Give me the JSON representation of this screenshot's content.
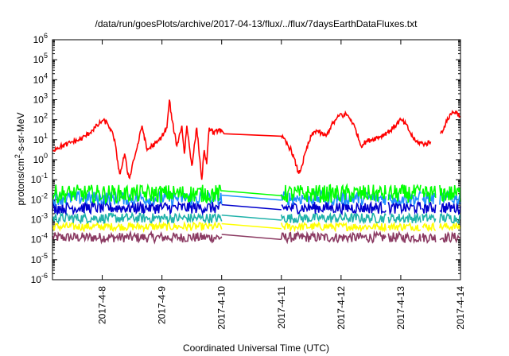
{
  "chart_data": {
    "type": "line",
    "title": "/data/run/goesPlots/archive/2017-04-13/flux/../flux/7daysEarthDataFluxes.txt",
    "xlabel": "Coordinated Universal Time (UTC)",
    "ylabel_parts": {
      "base": "protons/cm",
      "sup": "2",
      "rest": "-s-sr-MeV"
    },
    "y_scale": "log",
    "ylim": [
      1e-06,
      1000000.0
    ],
    "y_ticks": [
      {
        "value": 1e-06,
        "base": "10",
        "exp": "-6"
      },
      {
        "value": 1e-05,
        "base": "10",
        "exp": "-5"
      },
      {
        "value": 0.0001,
        "base": "10",
        "exp": "-4"
      },
      {
        "value": 0.001,
        "base": "10",
        "exp": "-3"
      },
      {
        "value": 0.01,
        "base": "10",
        "exp": "-2"
      },
      {
        "value": 0.1,
        "base": "10",
        "exp": "-1"
      },
      {
        "value": 1.0,
        "base": "10",
        "exp": "0"
      },
      {
        "value": 10.0,
        "base": "10",
        "exp": "1"
      },
      {
        "value": 100.0,
        "base": "10",
        "exp": "2"
      },
      {
        "value": 1000.0,
        "base": "10",
        "exp": "3"
      },
      {
        "value": 10000.0,
        "base": "10",
        "exp": "4"
      },
      {
        "value": 100000.0,
        "base": "10",
        "exp": "5"
      },
      {
        "value": 1000000.0,
        "base": "10",
        "exp": "6"
      }
    ],
    "xlim": [
      "2017-04-07T04:00",
      "2017-04-14T00:00"
    ],
    "x_ticks": [
      "2017-4-8",
      "2017-4-9",
      "2017-4-10",
      "2017-4-11",
      "2017-4-12",
      "2017-4-13",
      "2017-4-14"
    ],
    "x_tick_dates": [
      "2017-04-08",
      "2017-04-09",
      "2017-04-10",
      "2017-04-11",
      "2017-04-12",
      "2017-04-13",
      "2017-04-14"
    ],
    "grid": false,
    "series": [
      {
        "color": "#ff0000",
        "style": "line",
        "points": [
          [
            "2017-04-07T04:00",
            3
          ],
          [
            "2017-04-07T06:00",
            4
          ],
          [
            "2017-04-07T08:00",
            5
          ],
          [
            "2017-04-07T10:00",
            6
          ],
          [
            "2017-04-07T12:00",
            8
          ],
          [
            "2017-04-07T14:00",
            9
          ],
          [
            "2017-04-07T16:00",
            12
          ],
          [
            "2017-04-07T18:00",
            18
          ],
          [
            "2017-04-07T20:00",
            30
          ],
          [
            "2017-04-07T22:00",
            50
          ],
          [
            "2017-04-08T00:00",
            90
          ],
          [
            "2017-04-08T02:00",
            70
          ],
          [
            "2017-04-08T03:00",
            40
          ],
          [
            "2017-04-08T05:00",
            10
          ],
          [
            "2017-04-08T06:00",
            1
          ],
          [
            "2017-04-08T07:00",
            0.2
          ],
          [
            "2017-04-08T08:00",
            0.5
          ],
          [
            "2017-04-08T09:00",
            2
          ],
          [
            "2017-04-08T10:00",
            0.3
          ],
          [
            "2017-04-08T11:00",
            0.12
          ],
          [
            "2017-04-08T12:00",
            0.5
          ],
          [
            "2017-04-08T14:00",
            4
          ],
          [
            "2017-04-08T16:00",
            50
          ],
          [
            "2017-04-08T18:00",
            3
          ],
          [
            "2017-04-08T20:00",
            5
          ],
          [
            "2017-04-08T22:00",
            7
          ],
          [
            "2017-04-09T00:00",
            15
          ],
          [
            "2017-04-09T02:00",
            40
          ],
          [
            "2017-04-09T03:00",
            1000
          ],
          [
            "2017-04-09T04:00",
            100
          ],
          [
            "2017-04-09T06:00",
            5
          ],
          [
            "2017-04-09T08:00",
            50
          ],
          [
            "2017-04-09T09:00",
            2
          ],
          [
            "2017-04-09T10:00",
            50
          ],
          [
            "2017-04-09T12:00",
            0.5
          ],
          [
            "2017-04-09T14:00",
            40
          ],
          [
            "2017-04-09T16:00",
            0.1
          ],
          [
            "2017-04-09T17:00",
            3
          ],
          [
            "2017-04-09T18:00",
            0.6
          ],
          [
            "2017-04-09T19:00",
            40
          ],
          [
            "2017-04-09T21:00",
            20
          ],
          [
            "2017-04-09T23:00",
            35
          ],
          [
            "2017-04-10T00:00",
            30
          ],
          [
            "2017-04-10T01:00",
            20
          ],
          [
            "2017-04-11T00:00",
            15
          ],
          [
            "2017-04-11T04:00",
            3
          ],
          [
            "2017-04-11T06:00",
            0.5
          ],
          [
            "2017-04-11T07:00",
            0.2
          ],
          [
            "2017-04-11T08:00",
            0.4
          ],
          [
            "2017-04-11T10:00",
            3
          ],
          [
            "2017-04-11T12:00",
            15
          ],
          [
            "2017-04-11T14:00",
            30
          ],
          [
            "2017-04-11T16:00",
            20
          ],
          [
            "2017-04-11T18:00",
            15
          ],
          [
            "2017-04-11T20:00",
            50
          ],
          [
            "2017-04-11T22:00",
            100
          ],
          [
            "2017-04-12T00:00",
            200
          ],
          [
            "2017-04-12T01:00",
            150
          ],
          [
            "2017-04-12T02:00",
            200
          ],
          [
            "2017-04-12T04:00",
            100
          ],
          [
            "2017-04-12T06:00",
            30
          ],
          [
            "2017-04-12T08:00",
            5
          ],
          [
            "2017-04-12T10:00",
            8
          ],
          [
            "2017-04-12T12:00",
            10
          ],
          [
            "2017-04-12T16:00",
            15
          ],
          [
            "2017-04-12T20:00",
            30
          ],
          [
            "2017-04-13T00:00",
            100
          ],
          [
            "2017-04-13T02:00",
            60
          ],
          [
            "2017-04-13T04:00",
            20
          ],
          [
            "2017-04-13T06:00",
            8
          ],
          [
            "2017-04-13T10:00",
            6
          ],
          [
            "2017-04-13T12:00",
            8
          ],
          [
            "2017-04-13T14:00",
            null
          ],
          [
            "2017-04-13T16:00",
            20
          ],
          [
            "2017-04-13T18:00",
            60
          ],
          [
            "2017-04-13T20:00",
            200
          ],
          [
            "2017-04-13T22:00",
            250
          ],
          [
            "2017-04-14T00:00",
            150
          ]
        ]
      },
      {
        "color": "#00ff00",
        "style": "band",
        "center": 0.02,
        "spread_decades": 0.45
      },
      {
        "color": "#1e90ff",
        "style": "band",
        "center": 0.012,
        "spread_decades": 0.35
      },
      {
        "color": "#0000cd",
        "style": "band",
        "center": 0.004,
        "spread_decades": 0.3
      },
      {
        "color": "#20b2aa",
        "style": "band",
        "center": 0.0012,
        "spread_decades": 0.25
      },
      {
        "color": "#ffff00",
        "style": "band",
        "center": 0.00045,
        "spread_decades": 0.2
      },
      {
        "color": "#8b3a62",
        "style": "band",
        "center": 0.00013,
        "spread_decades": 0.25
      }
    ],
    "data_gaps": [
      [
        "2017-04-10T00:00",
        "2017-04-11T00:00"
      ]
    ]
  }
}
